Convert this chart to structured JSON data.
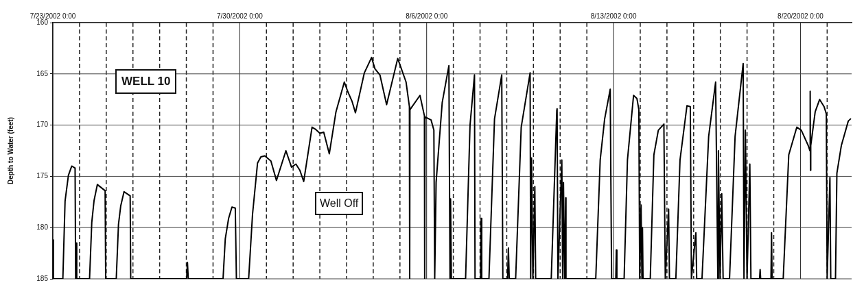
{
  "chart_data": {
    "type": "line",
    "ylabel": "Depth to Water (feet)",
    "annotations": [
      "WELL 10",
      "Well Off"
    ],
    "x": [
      "2002-07-23T00:00",
      "2002-07-23T00:30",
      "2002-07-23T09:00",
      "2002-07-23T11:00",
      "2002-07-23T14:00",
      "2002-07-23T17:00",
      "2002-07-23T20:00",
      "2002-07-23T20:30",
      "2002-07-23T21:00",
      "2002-07-23T21:30",
      "2002-07-24T09:00",
      "2002-07-24T11:00",
      "2002-07-24T13:00",
      "2002-07-24T16:00",
      "2002-07-24T23:00",
      "2002-07-24T23:30",
      "2002-07-25T09:00",
      "2002-07-25T11:00",
      "2002-07-25T13:00",
      "2002-07-25T16:00",
      "2002-07-25T21:30",
      "2002-07-25T22:00",
      "2002-07-28T00:15",
      "2002-07-28T01:00",
      "2002-07-28T01:45",
      "2002-07-29T09:00",
      "2002-07-29T11:00",
      "2002-07-29T14:00",
      "2002-07-29T17:00",
      "2002-07-29T20:00",
      "2002-07-29T21:00",
      "2002-07-30T08:00",
      "2002-07-30T11:30",
      "2002-07-30T16:00",
      "2002-07-30T19:00",
      "2002-07-30T22:30",
      "2002-07-31T04:00",
      "2002-07-31T09:00",
      "2002-07-31T17:30",
      "2002-07-31T22:30",
      "2002-08-01T02:30",
      "2002-08-01T06:00",
      "2002-08-01T09:30",
      "2002-08-01T17:00",
      "2002-08-01T20:00",
      "2002-08-02T00:00",
      "2002-08-02T03:30",
      "2002-08-02T08:30",
      "2002-08-02T14:30",
      "2002-08-02T22:00",
      "2002-08-03T01:00",
      "2002-08-03T05:00",
      "2002-08-03T08:00",
      "2002-08-03T16:00",
      "2002-08-03T22:30",
      "2002-08-04T01:30",
      "2002-08-04T06:00",
      "2002-08-04T12:00",
      "2002-08-04T22:00",
      "2002-08-05T05:30",
      "2002-08-05T08:30",
      "2002-08-05T08:45",
      "2002-08-05T09:00",
      "2002-08-05T18:00",
      "2002-08-05T22:00",
      "2002-08-05T22:15",
      "2002-08-05T22:30",
      "2002-08-06T04:00",
      "2002-08-06T06:30",
      "2002-08-06T07:15",
      "2002-08-06T08:30",
      "2002-08-06T14:00",
      "2002-08-06T20:00",
      "2002-08-06T21:00",
      "2002-08-06T21:30",
      "2002-08-06T22:15",
      "2002-08-07T11:00",
      "2002-08-07T15:00",
      "2002-08-07T19:00",
      "2002-08-07T19:30",
      "2002-08-08T00:30",
      "2002-08-08T01:00",
      "2002-08-08T01:30",
      "2002-08-08T08:00",
      "2002-08-08T13:00",
      "2002-08-08T19:30",
      "2002-08-08T20:30",
      "2002-08-09T00:45",
      "2002-08-09T01:30",
      "2002-08-09T02:15",
      "2002-08-09T08:00",
      "2002-08-09T13:00",
      "2002-08-09T21:00",
      "2002-08-09T21:30",
      "2002-08-09T22:15",
      "2002-08-09T23:30",
      "2002-08-10T01:15",
      "2002-08-10T02:00",
      "2002-08-10T16:00",
      "2002-08-10T21:00",
      "2002-08-10T21:15",
      "2002-08-10T22:00",
      "2002-08-11T01:30",
      "2002-08-11T02:15",
      "2002-08-11T03:00",
      "2002-08-11T04:00",
      "2002-08-11T05:00",
      "2002-08-11T05:15",
      "2002-08-12T08:00",
      "2002-08-12T12:00",
      "2002-08-12T16:00",
      "2002-08-12T21:00",
      "2002-08-12T22:15",
      "2002-08-13T02:00",
      "2002-08-13T02:30",
      "2002-08-13T03:00",
      "2002-08-13T09:30",
      "2002-08-13T12:30",
      "2002-08-13T18:00",
      "2002-08-13T21:00",
      "2002-08-13T22:45",
      "2002-08-13T23:30",
      "2002-08-14T00:45",
      "2002-08-14T01:30",
      "2002-08-14T02:00",
      "2002-08-14T02:30",
      "2002-08-14T09:00",
      "2002-08-14T12:15",
      "2002-08-14T16:15",
      "2002-08-14T21:15",
      "2002-08-14T22:30",
      "2002-08-15T01:30",
      "2002-08-15T02:15",
      "2002-08-15T08:00",
      "2002-08-15T11:45",
      "2002-08-15T18:00",
      "2002-08-15T21:00",
      "2002-08-15T22:00",
      "2002-08-16T02:00",
      "2002-08-16T02:45",
      "2002-08-16T07:30",
      "2002-08-16T13:30",
      "2002-08-16T19:45",
      "2002-08-16T21:45",
      "2002-08-16T22:15",
      "2002-08-16T23:45",
      "2002-08-17T01:15",
      "2002-08-17T02:30",
      "2002-08-17T08:15",
      "2002-08-17T13:15",
      "2002-08-17T20:30",
      "2002-08-17T21:15",
      "2002-08-17T22:30",
      "2002-08-18T00:00",
      "2002-08-18T02:30",
      "2002-08-18T03:30",
      "2002-08-18T11:15",
      "2002-08-18T11:45",
      "2002-08-18T12:15",
      "2002-08-18T21:30",
      "2002-08-18T22:00",
      "2002-08-18T22:30",
      "2002-08-19T08:30",
      "2002-08-19T13:30",
      "2002-08-19T20:45",
      "2002-08-20T00:45",
      "2002-08-20T07:00",
      "2002-08-20T08:30",
      "2002-08-20T08:45",
      "2002-08-20T09:00",
      "2002-08-20T09:15",
      "2002-08-20T13:15",
      "2002-08-20T17:15",
      "2002-08-20T21:15",
      "2002-08-20T23:15",
      "2002-08-21T00:00",
      "2002-08-21T02:30",
      "2002-08-21T03:15",
      "2002-08-21T07:30",
      "2002-08-21T08:45",
      "2002-08-21T12:45",
      "2002-08-21T19:00",
      "2002-08-21T21:00"
    ],
    "series": [
      {
        "color": "#000000",
        "values": [
          181.2,
          185,
          185,
          177.4,
          174.9,
          174.0,
          174.2,
          185,
          181.5,
          185,
          185,
          179.5,
          177.4,
          175.8,
          176.4,
          185,
          185,
          179.7,
          177.9,
          176.5,
          176.9,
          185,
          185,
          183.4,
          185,
          185,
          181.1,
          179.1,
          178.0,
          178.1,
          185,
          185,
          178.7,
          173.7,
          173.1,
          173.0,
          173.5,
          175.4,
          172.5,
          174.1,
          173.8,
          174.4,
          175.5,
          170.2,
          170.4,
          170.8,
          170.7,
          172.8,
          168.7,
          165.8,
          166.7,
          167.7,
          168.8,
          164.9,
          163.4,
          164.5,
          165.1,
          168.0,
          163.5,
          165.8,
          168.2,
          185,
          168.5,
          167.1,
          169.1,
          185,
          169.2,
          169.5,
          170.5,
          185,
          175.6,
          167.8,
          164.2,
          185,
          177.2,
          185,
          185,
          170.0,
          165.1,
          185,
          185,
          179.1,
          185,
          185,
          169.4,
          165.1,
          185,
          185,
          182.0,
          185,
          185,
          170.2,
          164.9,
          185,
          173.2,
          185,
          176.0,
          185,
          185,
          168.5,
          168.4,
          185,
          173.4,
          185,
          175.6,
          185,
          177.1,
          185,
          185,
          173.4,
          169.4,
          166.5,
          185,
          185,
          182.2,
          185,
          185,
          173.4,
          167.1,
          167.4,
          168.5,
          185,
          177.8,
          185,
          180.0,
          185,
          185,
          172.9,
          170.5,
          169.9,
          185,
          178.2,
          185,
          185,
          173.4,
          168.1,
          168.2,
          185,
          180.5,
          185,
          185,
          171.1,
          165.8,
          185,
          172.5,
          185,
          176.7,
          185,
          185,
          171.1,
          164.0,
          185,
          170.5,
          185,
          173.8,
          185,
          185,
          184.1,
          185,
          185,
          180.5,
          185,
          185,
          172.9,
          170.2,
          170.5,
          172.0,
          172.5,
          166.7,
          174.4,
          172.0,
          168.7,
          167.5,
          168.2,
          168.9,
          185,
          175.1,
          185,
          185,
          174.7,
          172.0,
          169.6,
          169.4
        ]
      }
    ],
    "xlim": [
      "2002-07-23T00:00",
      "2002-08-21T22:00"
    ],
    "xticks": [
      {
        "value": "2002-07-23T00:00",
        "label": "7/23/2002 0:00"
      },
      {
        "value": "2002-07-24T00:00",
        "label": null
      },
      {
        "value": "2002-07-25T00:00",
        "label": null
      },
      {
        "value": "2002-07-26T00:00",
        "label": null
      },
      {
        "value": "2002-07-27T00:00",
        "label": null
      },
      {
        "value": "2002-07-28T00:00",
        "label": null
      },
      {
        "value": "2002-07-29T00:00",
        "label": null
      },
      {
        "value": "2002-07-30T00:00",
        "label": "7/30/2002 0:00"
      },
      {
        "value": "2002-07-31T00:00",
        "label": null
      },
      {
        "value": "2002-08-01T00:00",
        "label": null
      },
      {
        "value": "2002-08-02T00:00",
        "label": null
      },
      {
        "value": "2002-08-03T00:00",
        "label": null
      },
      {
        "value": "2002-08-04T00:00",
        "label": null
      },
      {
        "value": "2002-08-05T00:00",
        "label": null
      },
      {
        "value": "2002-08-06T00:00",
        "label": "8/6/2002 0:00"
      },
      {
        "value": "2002-08-07T00:00",
        "label": null
      },
      {
        "value": "2002-08-08T00:00",
        "label": null
      },
      {
        "value": "2002-08-09T00:00",
        "label": null
      },
      {
        "value": "2002-08-10T00:00",
        "label": null
      },
      {
        "value": "2002-08-11T00:00",
        "label": null
      },
      {
        "value": "2002-08-12T00:00",
        "label": null
      },
      {
        "value": "2002-08-13T00:00",
        "label": "8/13/2002 0:00"
      },
      {
        "value": "2002-08-14T00:00",
        "label": null
      },
      {
        "value": "2002-08-15T00:00",
        "label": null
      },
      {
        "value": "2002-08-16T00:00",
        "label": null
      },
      {
        "value": "2002-08-17T00:00",
        "label": null
      },
      {
        "value": "2002-08-18T00:00",
        "label": null
      },
      {
        "value": "2002-08-19T00:00",
        "label": null
      },
      {
        "value": "2002-08-20T00:00",
        "label": "8/20/2002 0:00"
      },
      {
        "value": "2002-08-21T00:00",
        "label": null
      }
    ],
    "ylim": [
      185,
      160
    ],
    "yticks": [
      160,
      165,
      170,
      175,
      180,
      185
    ],
    "grid": true,
    "legend": false,
    "marker": "none",
    "line_style": "solid"
  }
}
